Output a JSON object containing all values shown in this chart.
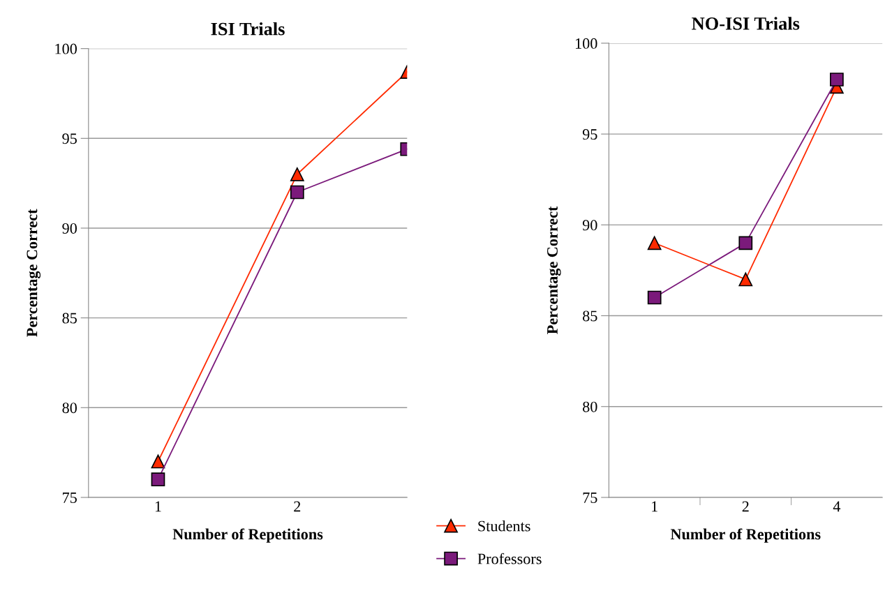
{
  "chart_data": [
    {
      "type": "line",
      "title": "ISI Trials",
      "xlabel": "Number of Repetitions",
      "ylabel": "Percentage Correct",
      "x": [
        1,
        2,
        2.79
      ],
      "xlim": [
        0.5,
        2.79
      ],
      "xticks": [
        1,
        2
      ],
      "ylim": [
        75,
        100
      ],
      "yticks": [
        75,
        80,
        85,
        90,
        95,
        100
      ],
      "grid": "y",
      "legend": "bottom right",
      "series": [
        {
          "name": "Students",
          "color": "#ff2a00",
          "values": [
            77,
            93,
            98.7
          ],
          "marker": "triangle"
        },
        {
          "name": "Professors",
          "color": "#7b1a7b",
          "values": [
            76,
            92,
            94.4
          ],
          "marker": "square"
        }
      ]
    },
    {
      "type": "line",
      "title": "NO-ISI Trials",
      "xlabel": "Number of Repetitions",
      "ylabel": "Percentage Correct",
      "categories": [
        "1",
        "2",
        "4"
      ],
      "ylim": [
        75,
        100
      ],
      "yticks": [
        75,
        80,
        85,
        90,
        95,
        100
      ],
      "grid": "y",
      "series": [
        {
          "color": "#ff2a00",
          "values": [
            89,
            87,
            97.6
          ],
          "marker": "triangle"
        },
        {
          "color": "#7b1a7b",
          "values": [
            86,
            89,
            98
          ],
          "marker": "square"
        }
      ]
    }
  ]
}
